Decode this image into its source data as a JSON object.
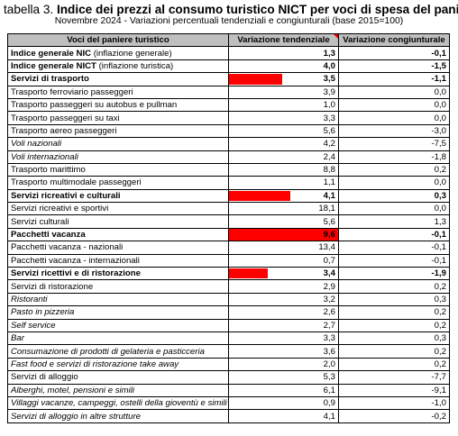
{
  "header": {
    "label": "tabella 3.",
    "title": "Indice dei prezzi al consumo turistico NICT per voci di spesa del paniere",
    "subtitle": "Novembre 2024 - Variazioni percentuali tendenziali e congiunturali (base 2015=100)"
  },
  "table": {
    "columns": [
      "Voci del paniere turistico",
      "Variazione tendenziale",
      "Variazione congiunturale"
    ],
    "rows": [
      {
        "name": "Indice generale NIC",
        "note": "(inflazione generale)",
        "tend": "1,3",
        "cong": "-0,1",
        "style": "bold"
      },
      {
        "name": "Indice generale NICT",
        "note": "(inflazione turistica)",
        "tend": "4,0",
        "cong": "-1,5",
        "style": "bold"
      },
      {
        "name": "Servizi di trasporto",
        "note": "",
        "tend": "3,5",
        "cong": "-1,1",
        "style": "bold",
        "bar": 0.485
      },
      {
        "name": "Trasporto ferroviario passeggeri",
        "note": "",
        "tend": "3,9",
        "cong": "0,0",
        "style": "normal"
      },
      {
        "name": "Trasporto passeggeri su autobus e pullman",
        "note": "",
        "tend": "1,0",
        "cong": "0,0",
        "style": "normal"
      },
      {
        "name": "Trasporto passeggeri su taxi",
        "note": "",
        "tend": "3,3",
        "cong": "0,0",
        "style": "normal"
      },
      {
        "name": "Trasporto aereo passeggeri",
        "note": "",
        "tend": "5,6",
        "cong": "-3,0",
        "style": "normal"
      },
      {
        "name": "Voli nazionali",
        "note": "",
        "tend": "4,2",
        "cong": "-7,5",
        "style": "italic"
      },
      {
        "name": "Voli internazionali",
        "note": "",
        "tend": "2,4",
        "cong": "-1,8",
        "style": "italic"
      },
      {
        "name": "Trasporto marittimo",
        "note": "",
        "tend": "8,8",
        "cong": "0,2",
        "style": "normal"
      },
      {
        "name": "Trasporto multimodale passeggeri",
        "note": "",
        "tend": "1,1",
        "cong": "0,0",
        "style": "normal"
      },
      {
        "name": "Servizi ricreativi e culturali",
        "note": "",
        "tend": "4,1",
        "cong": "0,3",
        "style": "bold",
        "bar": 0.565
      },
      {
        "name": "Servizi ricreativi e sportivi",
        "note": "",
        "tend": "18,1",
        "cong": "0,0",
        "style": "normal"
      },
      {
        "name": "Servizi culturali",
        "note": "",
        "tend": "5,6",
        "cong": "1,3",
        "style": "normal"
      },
      {
        "name": "Pacchetti vacanza",
        "note": "",
        "tend": "9,6",
        "cong": "-0,1",
        "style": "bold",
        "bar": 1.0
      },
      {
        "name": "Pacchetti vacanza - nazionali",
        "note": "",
        "tend": "13,4",
        "cong": "-0,1",
        "style": "normal"
      },
      {
        "name": "Pacchetti vacanza - internazionali",
        "note": "",
        "tend": "0,7",
        "cong": "-0,1",
        "style": "normal"
      },
      {
        "name": "Servizi ricettivi e di ristorazione",
        "note": "",
        "tend": "3,4",
        "cong": "-1,9",
        "style": "bold",
        "bar": 0.355
      },
      {
        "name": "Servizi di ristorazione",
        "note": "",
        "tend": "2,9",
        "cong": "0,2",
        "style": "normal"
      },
      {
        "name": "Ristoranti",
        "note": "",
        "tend": "3,2",
        "cong": "0,3",
        "style": "italic"
      },
      {
        "name": "Pasto in pizzeria",
        "note": "",
        "tend": "2,6",
        "cong": "0,2",
        "style": "italic"
      },
      {
        "name": "Self service",
        "note": "",
        "tend": "2,7",
        "cong": "0,2",
        "style": "italic"
      },
      {
        "name": "Bar",
        "note": "",
        "tend": "3,3",
        "cong": "0,3",
        "style": "italic"
      },
      {
        "name": "Consumazione di prodotti di gelateria e pasticceria",
        "note": "",
        "tend": "3,6",
        "cong": "0,2",
        "style": "italic"
      },
      {
        "name": "Fast food e servizi di ristorazione take away",
        "note": "",
        "tend": "2,0",
        "cong": "0,2",
        "style": "italic"
      },
      {
        "name": "Servizi di alloggio",
        "note": "",
        "tend": "5,3",
        "cong": "-7,7",
        "style": "normal"
      },
      {
        "name": "Alberghi, motel, pensioni e simili",
        "note": "",
        "tend": "6,1",
        "cong": "-9,1",
        "style": "italic"
      },
      {
        "name": "Villaggi vacanze, campeggi, ostelli della gioventù e simili",
        "note": "",
        "tend": "0,9",
        "cong": "-1,0",
        "style": "italic"
      },
      {
        "name": "Servizi di alloggio in altre strutture",
        "note": "",
        "tend": "4,1",
        "cong": "-0,2",
        "style": "italic"
      }
    ]
  },
  "colors": {
    "header_bg": "#bfbfbf",
    "bar": "#ff0000",
    "corner_flag": "#e00000"
  }
}
